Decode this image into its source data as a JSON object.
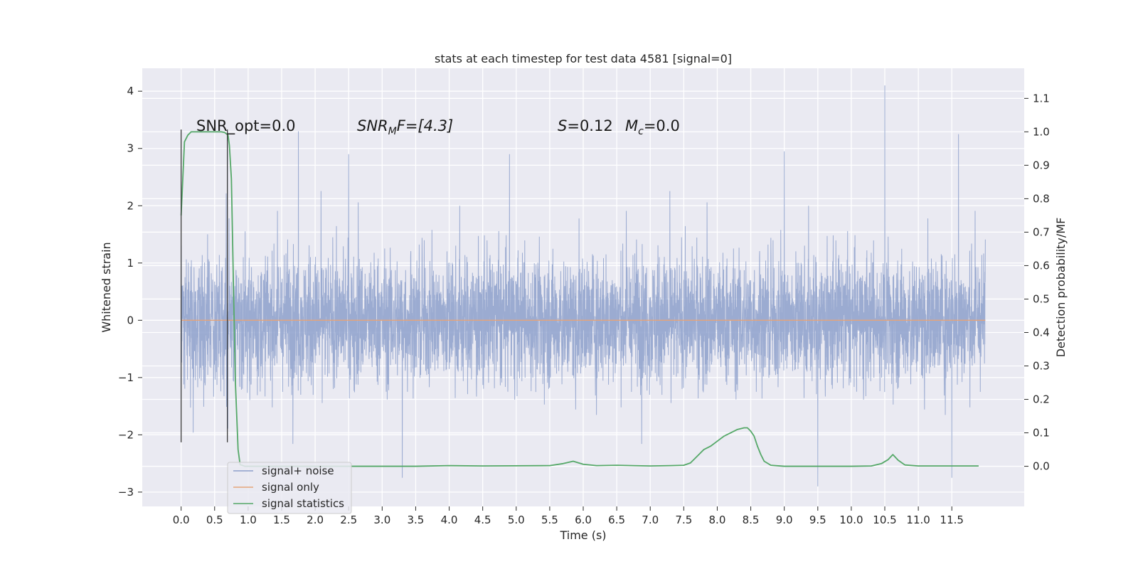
{
  "chart_data": {
    "type": "line",
    "title": "stats at each timestep for test data 4581 [signal=0]",
    "xlabel": "Time (s)",
    "ylabel": "Whitened strain",
    "y2label": "Detection probability/MF",
    "xlim": [
      -0.58,
      12.58
    ],
    "ylim": [
      -3.25,
      4.4
    ],
    "y2lim": [
      -0.12,
      1.19
    ],
    "x_ticks": [
      "0.0",
      "0.5",
      "1.0",
      "1.5",
      "2.0",
      "2.5",
      "3.0",
      "3.5",
      "4.0",
      "4.5",
      "5.0",
      "5.5",
      "6.0",
      "6.5",
      "7.0",
      "7.5",
      "8.0",
      "8.5",
      "9.0",
      "9.5",
      "10.0",
      "10.5",
      "11.0",
      "11.5"
    ],
    "y_ticks": [
      "4",
      "3",
      "2",
      "1",
      "0",
      "−1",
      "−2",
      "−3"
    ],
    "y2_ticks": [
      "1.1",
      "1.0",
      "0.9",
      "0.8",
      "0.7",
      "0.6",
      "0.5",
      "0.4",
      "0.3",
      "0.2",
      "0.1",
      "0.0"
    ],
    "grid": true,
    "legend_position": "lower-left",
    "annotations": {
      "snr_opt": "SNR_opt=0.0",
      "snr_mf_main": "SNR",
      "snr_mf_sub": "M",
      "snr_mf_rest": "F=[4.3]",
      "s_main": "S",
      "s_rest": "=0.12",
      "mc_main": "M",
      "mc_sub": "c",
      "mc_rest": "=0.0"
    },
    "vlines": [
      0.0,
      0.69
    ],
    "series": [
      {
        "name": "signal+ noise",
        "color": "#8da0cb",
        "axis": "left",
        "t_range": [
          0.0,
          12.0
        ],
        "typical_range": [
          -1.6,
          1.7
        ],
        "peaks": [
          {
            "x": 0.0,
            "y": 1.3
          },
          {
            "x": 0.69,
            "y": 3.3
          },
          {
            "x": 1.75,
            "y": 3.3
          },
          {
            "x": 2.5,
            "y": 2.9
          },
          {
            "x": 4.9,
            "y": 2.9
          },
          {
            "x": 9.0,
            "y": 2.95
          },
          {
            "x": 10.5,
            "y": 4.1
          },
          {
            "x": 11.6,
            "y": 3.25
          }
        ],
        "troughs": [
          {
            "x": 3.3,
            "y": -2.75
          },
          {
            "x": 9.5,
            "y": -2.9
          },
          {
            "x": 11.5,
            "y": -2.75
          }
        ]
      },
      {
        "name": "signal only",
        "color": "#e5a47a",
        "axis": "left",
        "x": [
          0.0,
          12.0
        ],
        "y": [
          0.0,
          0.0
        ]
      },
      {
        "name": "signal statistics",
        "color": "#55a868",
        "axis": "right",
        "x": [
          0.0,
          0.05,
          0.1,
          0.15,
          0.2,
          0.3,
          0.4,
          0.5,
          0.6,
          0.65,
          0.7,
          0.72,
          0.75,
          0.78,
          0.81,
          0.85,
          0.88,
          0.95,
          1.5,
          2.5,
          3.5,
          4.0,
          4.5,
          5.5,
          5.7,
          5.85,
          6.0,
          6.2,
          6.5,
          7.0,
          7.3,
          7.5,
          7.6,
          7.7,
          7.8,
          7.9,
          8.0,
          8.1,
          8.2,
          8.3,
          8.4,
          8.45,
          8.5,
          8.55,
          8.6,
          8.65,
          8.7,
          8.8,
          9.0,
          9.5,
          10.0,
          10.3,
          10.45,
          10.55,
          10.62,
          10.7,
          10.8,
          11.0,
          11.5,
          11.9
        ],
        "y": [
          0.75,
          0.97,
          0.99,
          1.0,
          1.0,
          1.0,
          1.0,
          1.0,
          1.0,
          0.998,
          0.99,
          0.96,
          0.86,
          0.55,
          0.25,
          0.05,
          0.005,
          0.0,
          0.0,
          0.0,
          0.0,
          0.002,
          0.001,
          0.002,
          0.008,
          0.015,
          0.006,
          0.002,
          0.003,
          0.001,
          0.002,
          0.003,
          0.01,
          0.03,
          0.05,
          0.06,
          0.075,
          0.09,
          0.1,
          0.11,
          0.115,
          0.115,
          0.105,
          0.09,
          0.06,
          0.035,
          0.015,
          0.003,
          0.0,
          0.0,
          0.0,
          0.001,
          0.008,
          0.02,
          0.035,
          0.018,
          0.004,
          0.001,
          0.001,
          0.001
        ]
      }
    ]
  }
}
